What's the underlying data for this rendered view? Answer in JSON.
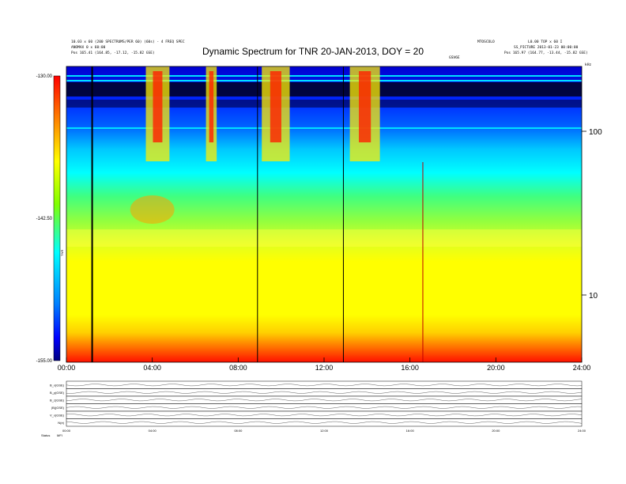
{
  "header": {
    "title": "Dynamic Spectrum for TNR 20-JAN-2013, DOY = 20",
    "left_line1": "10.03 x 60 (200 SPECTRUMS/PER 60) (60s) - 4 FREQ SPEC",
    "left_line2": "ANOMAX 0 x 60:00",
    "left_line3": "Pos 165.41 (164.85, -17.12, -15.82 GSE)",
    "right_line1": "MTOSCOLO",
    "right_line2": "L0.00 TOP x 60 I",
    "right_line3": "SS_PICTURE 2013-01-23 00:00:00",
    "right_line4": "Pos 165.97 (164.77, -13.44, -15.82 GSE)",
    "center_small": "GSV6E",
    "right_small": "kHz"
  },
  "chart_data": {
    "type": "heatmap",
    "title": "Dynamic Spectrum for TNR 20-JAN-2013, DOY = 20",
    "x_ticks": [
      "00:00",
      "04:00",
      "08:00",
      "12:00",
      "16:00",
      "20:00",
      "24:00"
    ],
    "x_range_hours": [
      0,
      24
    ],
    "y_scale": "log",
    "y_right_ticks": [
      "100",
      "10"
    ],
    "y_right_values_khz": [
      100,
      10
    ],
    "y_right_unit": "kHz",
    "colorbar_ticks": [
      "-130.00",
      "-142.50",
      "-155.00"
    ],
    "colorbar_range": [
      -155,
      -130
    ],
    "colorbar_label": "TNR",
    "vertical_lines_hours": [
      1.2,
      8.9,
      12.9,
      16.6
    ],
    "bursts": [
      {
        "start_h": 3.7,
        "end_h": 4.8
      },
      {
        "start_h": 6.5,
        "end_h": 7.0
      },
      {
        "start_h": 9.1,
        "end_h": 10.4
      },
      {
        "start_h": 13.2,
        "end_h": 14.6
      }
    ]
  },
  "lower_panels": {
    "labels": [
      "B_x(GSE)",
      "B_y(GSE)",
      "B_z(GSE)",
      "|B|(GSE)",
      "V_x(GSE)",
      "N(e)"
    ],
    "bottom_ticks": [
      "00:00",
      "04:00",
      "08:00",
      "12:00",
      "16:00",
      "20:00",
      "24:00"
    ],
    "footer_label": "Status",
    "footer_value": "MFI"
  }
}
